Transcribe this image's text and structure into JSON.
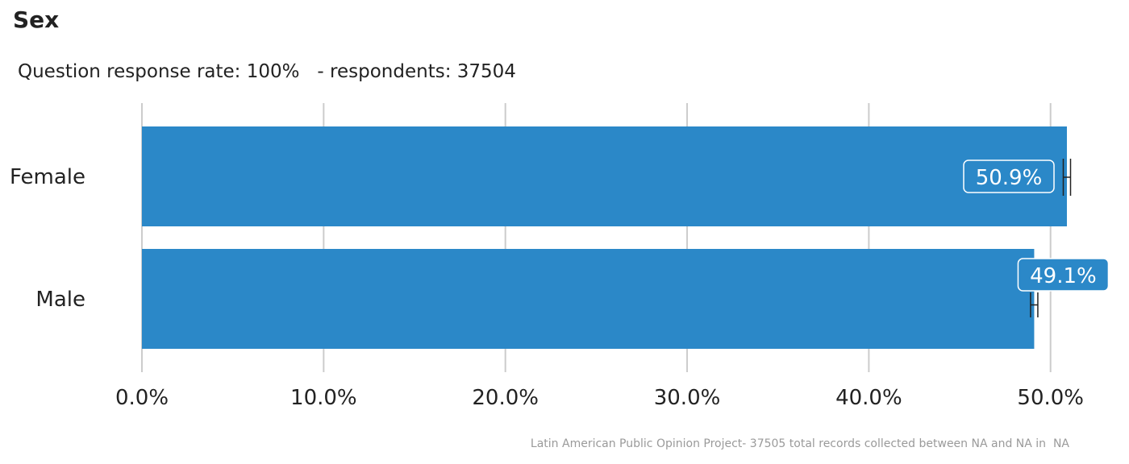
{
  "chart_data": {
    "type": "bar",
    "orientation": "horizontal",
    "title": "Sex",
    "subtitle": "Question response rate: 100%   - respondents: 37504",
    "caption": "Latin American Public Opinion Project- 37505 total records collected between NA and NA in  NA",
    "categories": [
      "Female",
      "Male"
    ],
    "values": [
      50.9,
      49.1
    ],
    "data_labels": [
      "50.9%",
      "49.1%"
    ],
    "error_bars": [
      [
        50.7,
        51.1
      ],
      [
        48.9,
        49.3
      ]
    ],
    "x_ticks": [
      "0.0%",
      "10.0%",
      "20.0%",
      "30.0%",
      "40.0%",
      "50.0%"
    ],
    "xlim": [
      0,
      50.9
    ],
    "grid": "vertical",
    "colors": {
      "bar": "#2b88c8",
      "grid": "#cccccc",
      "errorbar": "#222222",
      "label_box": "#2b88c8",
      "label_border": "#ffffff"
    }
  }
}
